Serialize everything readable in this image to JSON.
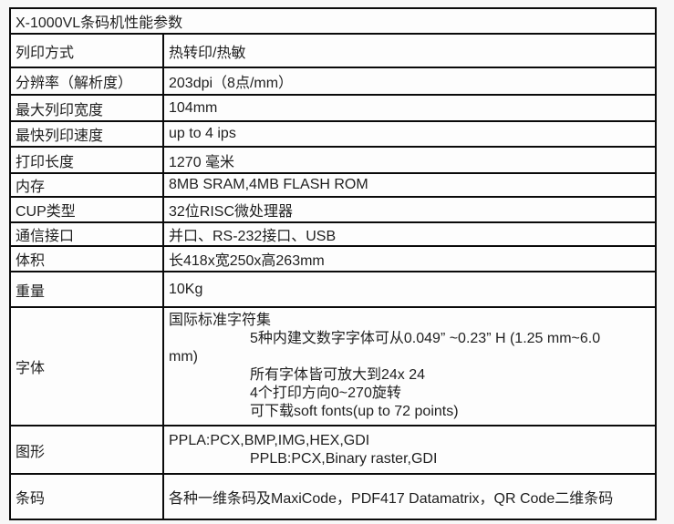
{
  "colors": {
    "page_bg": "#f7f7f7",
    "cell_bg": "#fdfdfd",
    "border": "#0a0a0a",
    "text": "#1f1f1f"
  },
  "table": {
    "title": "X-1000VL条码机性能参数",
    "rows": [
      {
        "label": "列印方式",
        "value": "热转印/热敏"
      },
      {
        "label": "分辨率（解析度）",
        "value": "203dpi（8点/mm）"
      },
      {
        "label": "最大列印宽度",
        "value": "104mm"
      },
      {
        "label": "最快列印速度",
        "value": "up to 4 ips"
      },
      {
        "label": "打印长度",
        "value": "1270 毫米"
      },
      {
        "label": "内存",
        "value": "8MB SRAM,4MB FLASH ROM"
      },
      {
        "label": "CUP类型",
        "value": "32位RISC微处理器"
      },
      {
        "label": "通信接口",
        "value": "并口、RS-232接口、USB"
      },
      {
        "label": "体积",
        "value": "长418x宽250x高263mm"
      },
      {
        "label": "重量",
        "value": "10Kg"
      },
      {
        "label": "字体",
        "lines": [
          {
            "text": "国际标准字符集",
            "indent": false
          },
          {
            "text": "5种内建文数字字体可从0.049” ~0.23” H (1.25 mm~6.0",
            "indent": true
          },
          {
            "text": "mm)",
            "indent": false
          },
          {
            "text": "所有字体皆可放大到24x 24",
            "indent": true
          },
          {
            "text": "4个打印方向0~270旋转",
            "indent": true
          },
          {
            "text": "可下载soft fonts(up to 72 points)",
            "indent": true
          }
        ]
      },
      {
        "label": "图形",
        "lines": [
          {
            "text": "PPLA:PCX,BMP,IMG,HEX,GDI",
            "indent": false
          },
          {
            "text": "PPLB:PCX,Binary raster,GDI",
            "indent": true
          }
        ]
      },
      {
        "label": "条码",
        "value": "各种一维条码及MaxiCode，PDF417 Datamatrix，QR Code二维条码"
      }
    ]
  }
}
